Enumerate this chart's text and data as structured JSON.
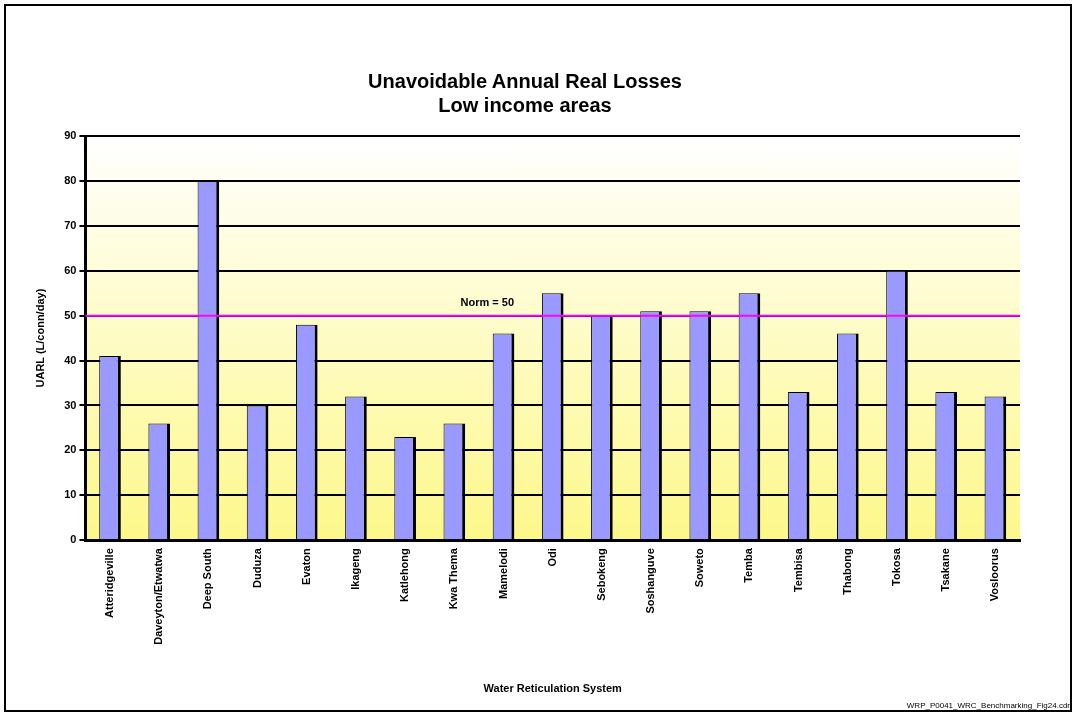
{
  "chart_data": {
    "type": "bar",
    "title": "Unavoidable Annual Real Losses",
    "subtitle": "Low income areas",
    "xlabel": "Water Reticulation System",
    "ylabel": "UARL (L/conn/day)",
    "categories": [
      "Atteridgeville",
      "Daveyton/Etwatwa",
      "Deep South",
      "Duduza",
      "Evaton",
      "Ikageng",
      "Katlehong",
      "Kwa Thema",
      "Mamelodi",
      "Odi",
      "Sebokeng",
      "Soshanguve",
      "Soweto",
      "Temba",
      "Tembisa",
      "Thabong",
      "Tokosa",
      "Tsakane",
      "Vosloorus"
    ],
    "values": [
      41,
      26,
      80,
      30,
      48,
      32,
      23,
      26,
      46,
      55,
      50,
      51,
      51,
      55,
      33,
      46,
      60,
      33,
      32
    ],
    "color": "#9999ff",
    "ylim": [
      0,
      90
    ],
    "yticks": [
      0,
      10,
      20,
      30,
      40,
      50,
      60,
      70,
      80,
      90
    ],
    "grid": "y",
    "legend": false,
    "ref_lines": [
      {
        "axis": "y",
        "value": 50,
        "label": "Norm = 50",
        "color": "#ff00ff"
      }
    ],
    "annotations": [
      "WRP_P0041_WRC_Benchmarking_Fig24.cdr"
    ]
  }
}
